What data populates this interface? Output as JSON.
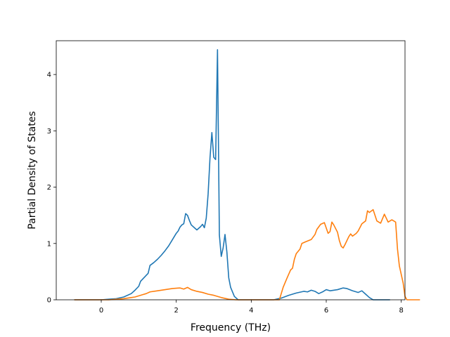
{
  "chart_data": {
    "type": "line",
    "title": "",
    "xlabel": "Frequency (THz)",
    "ylabel": "Partial Density of States",
    "xlim": [
      -1.2,
      8.1
    ],
    "ylim": [
      0,
      4.6
    ],
    "xticks": [
      0,
      2,
      4,
      6,
      8
    ],
    "yticks": [
      0,
      1,
      2,
      3,
      4
    ],
    "grid": false,
    "legend": "none",
    "series": [
      {
        "color": "#1f77b4",
        "points": [
          [
            -0.72,
            0
          ],
          [
            0,
            0
          ],
          [
            0.2,
            0.01
          ],
          [
            0.4,
            0.02
          ],
          [
            0.6,
            0.05
          ],
          [
            0.8,
            0.11
          ],
          [
            0.9,
            0.17
          ],
          [
            1.0,
            0.24
          ],
          [
            1.05,
            0.33
          ],
          [
            1.15,
            0.4
          ],
          [
            1.25,
            0.47
          ],
          [
            1.3,
            0.61
          ],
          [
            1.4,
            0.66
          ],
          [
            1.5,
            0.72
          ],
          [
            1.6,
            0.79
          ],
          [
            1.7,
            0.87
          ],
          [
            1.8,
            0.96
          ],
          [
            1.9,
            1.07
          ],
          [
            2.0,
            1.18
          ],
          [
            2.05,
            1.22
          ],
          [
            2.1,
            1.29
          ],
          [
            2.15,
            1.33
          ],
          [
            2.2,
            1.35
          ],
          [
            2.25,
            1.53
          ],
          [
            2.3,
            1.5
          ],
          [
            2.35,
            1.41
          ],
          [
            2.4,
            1.33
          ],
          [
            2.5,
            1.27
          ],
          [
            2.55,
            1.24
          ],
          [
            2.65,
            1.3
          ],
          [
            2.7,
            1.34
          ],
          [
            2.75,
            1.28
          ],
          [
            2.8,
            1.45
          ],
          [
            2.85,
            1.88
          ],
          [
            2.9,
            2.52
          ],
          [
            2.95,
            2.97
          ],
          [
            3.0,
            2.53
          ],
          [
            3.05,
            2.49
          ],
          [
            3.1,
            4.44
          ],
          [
            3.15,
            1.15
          ],
          [
            3.2,
            0.77
          ],
          [
            3.25,
            0.92
          ],
          [
            3.3,
            1.16
          ],
          [
            3.35,
            0.85
          ],
          [
            3.4,
            0.39
          ],
          [
            3.45,
            0.22
          ],
          [
            3.55,
            0.06
          ],
          [
            3.65,
            0
          ],
          [
            4.6,
            0
          ],
          [
            4.8,
            0.03
          ],
          [
            5.0,
            0.08
          ],
          [
            5.2,
            0.12
          ],
          [
            5.4,
            0.15
          ],
          [
            5.5,
            0.14
          ],
          [
            5.6,
            0.17
          ],
          [
            5.7,
            0.15
          ],
          [
            5.8,
            0.11
          ],
          [
            5.9,
            0.14
          ],
          [
            6.0,
            0.18
          ],
          [
            6.1,
            0.16
          ],
          [
            6.3,
            0.18
          ],
          [
            6.45,
            0.21
          ],
          [
            6.55,
            0.2
          ],
          [
            6.7,
            0.16
          ],
          [
            6.85,
            0.13
          ],
          [
            6.95,
            0.16
          ],
          [
            7.05,
            0.1
          ],
          [
            7.15,
            0.04
          ],
          [
            7.25,
            0
          ],
          [
            7.7,
            0
          ]
        ]
      },
      {
        "color": "#ff7f0e",
        "points": [
          [
            -0.72,
            0
          ],
          [
            0.2,
            0
          ],
          [
            0.6,
            0.02
          ],
          [
            0.8,
            0.04
          ],
          [
            0.9,
            0.05
          ],
          [
            1.0,
            0.07
          ],
          [
            1.1,
            0.09
          ],
          [
            1.2,
            0.11
          ],
          [
            1.3,
            0.14
          ],
          [
            1.5,
            0.16
          ],
          [
            1.7,
            0.18
          ],
          [
            1.9,
            0.2
          ],
          [
            2.1,
            0.21
          ],
          [
            2.2,
            0.19
          ],
          [
            2.3,
            0.22
          ],
          [
            2.4,
            0.18
          ],
          [
            2.55,
            0.15
          ],
          [
            2.7,
            0.13
          ],
          [
            2.85,
            0.1
          ],
          [
            3.0,
            0.08
          ],
          [
            3.2,
            0.04
          ],
          [
            3.4,
            0.01
          ],
          [
            3.6,
            0
          ],
          [
            4.75,
            0
          ],
          [
            4.85,
            0.22
          ],
          [
            4.95,
            0.38
          ],
          [
            5.05,
            0.53
          ],
          [
            5.1,
            0.56
          ],
          [
            5.15,
            0.72
          ],
          [
            5.2,
            0.82
          ],
          [
            5.3,
            0.9
          ],
          [
            5.35,
            1.0
          ],
          [
            5.45,
            1.03
          ],
          [
            5.6,
            1.07
          ],
          [
            5.7,
            1.16
          ],
          [
            5.75,
            1.25
          ],
          [
            5.85,
            1.34
          ],
          [
            5.95,
            1.37
          ],
          [
            6.05,
            1.18
          ],
          [
            6.1,
            1.21
          ],
          [
            6.15,
            1.38
          ],
          [
            6.2,
            1.33
          ],
          [
            6.3,
            1.2
          ],
          [
            6.35,
            1.05
          ],
          [
            6.4,
            0.95
          ],
          [
            6.45,
            0.92
          ],
          [
            6.5,
            0.98
          ],
          [
            6.6,
            1.12
          ],
          [
            6.65,
            1.17
          ],
          [
            6.7,
            1.13
          ],
          [
            6.8,
            1.18
          ],
          [
            6.85,
            1.22
          ],
          [
            6.95,
            1.35
          ],
          [
            7.05,
            1.4
          ],
          [
            7.1,
            1.58
          ],
          [
            7.15,
            1.55
          ],
          [
            7.25,
            1.6
          ],
          [
            7.35,
            1.4
          ],
          [
            7.45,
            1.36
          ],
          [
            7.55,
            1.52
          ],
          [
            7.65,
            1.38
          ],
          [
            7.75,
            1.42
          ],
          [
            7.85,
            1.38
          ],
          [
            7.9,
            0.9
          ],
          [
            7.95,
            0.6
          ],
          [
            8.05,
            0.3
          ],
          [
            8.1,
            0.06
          ],
          [
            8.15,
            0
          ],
          [
            8.5,
            0
          ]
        ]
      }
    ]
  }
}
